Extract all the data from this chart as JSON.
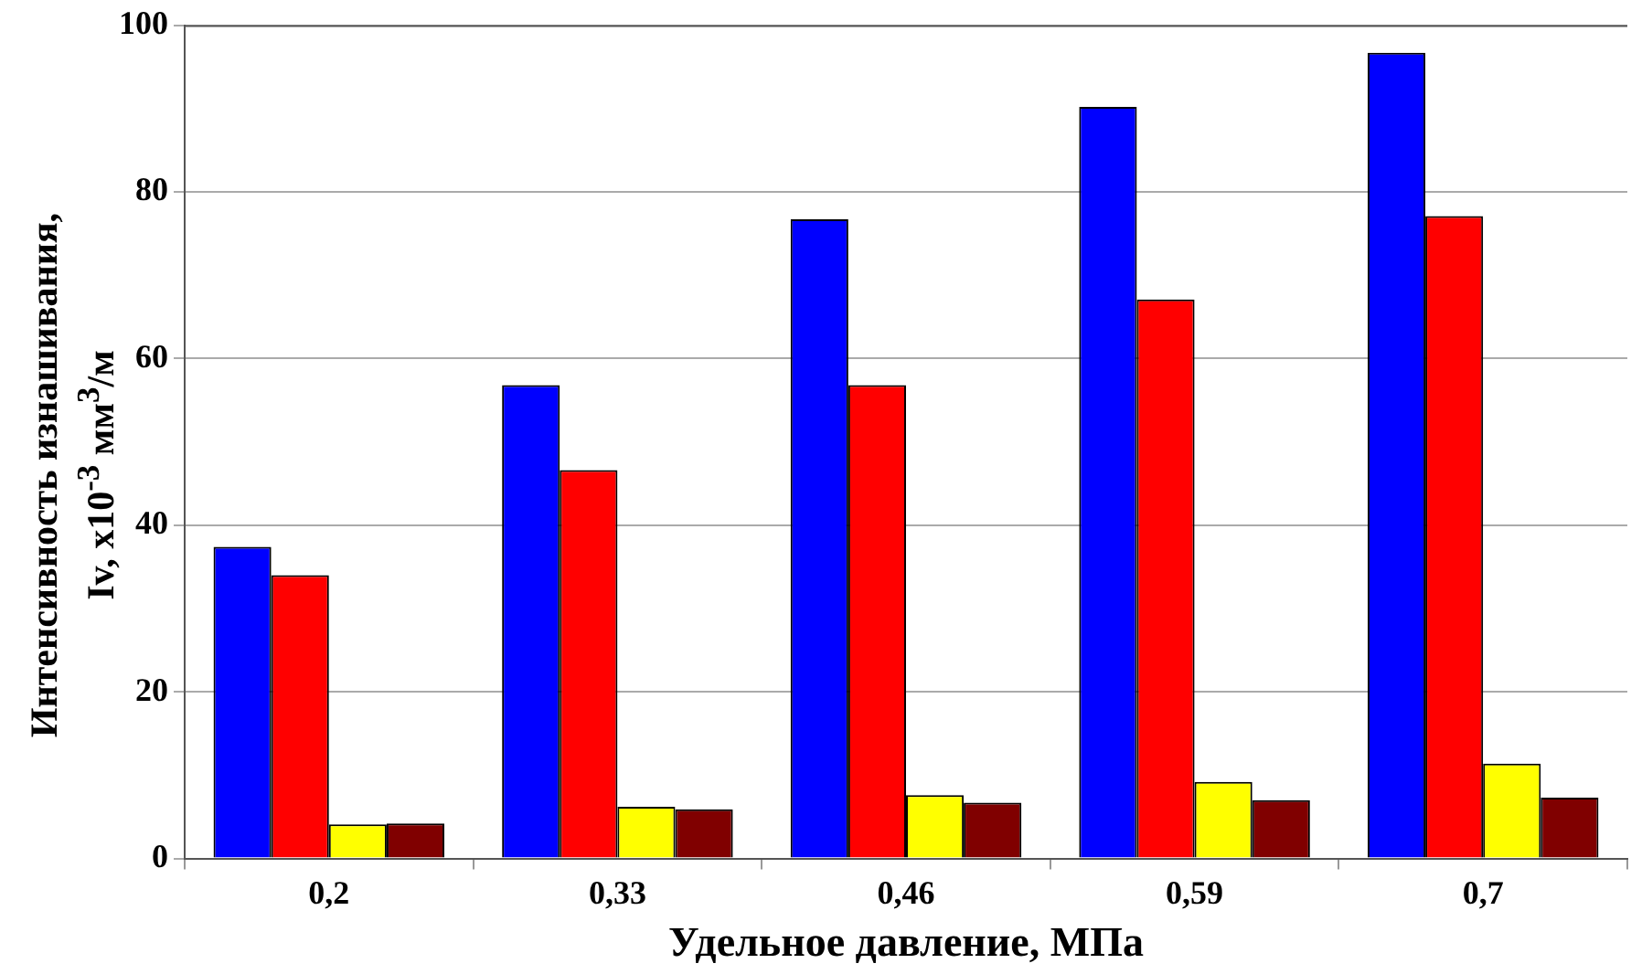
{
  "chart_data": {
    "type": "bar",
    "xlabel": "Удельное давление, МПа",
    "ylabel": "Интенсивность изнашивания, Iv, x10$^{-3}$ мм$^{3}$/м",
    "categories": [
      "0,2",
      "0,33",
      "0,46",
      "0,59",
      "0,7"
    ],
    "series": [
      {
        "color": "#0000ff",
        "values": [
          37.4,
          56.8,
          76.7,
          90.2,
          96.7
        ]
      },
      {
        "color": "#ff0000",
        "values": [
          34.0,
          46.6,
          56.8,
          67.1,
          77.1
        ]
      },
      {
        "color": "#ffff00",
        "values": [
          4.1,
          6.2,
          7.6,
          9.2,
          11.4
        ]
      },
      {
        "color": "#800000",
        "values": [
          4.2,
          5.9,
          6.7,
          7.0,
          7.3
        ]
      }
    ],
    "ylim": [
      0,
      100
    ],
    "yticks": [
      0,
      20,
      40,
      60,
      80,
      100
    ],
    "grid": "y",
    "legend": false
  }
}
